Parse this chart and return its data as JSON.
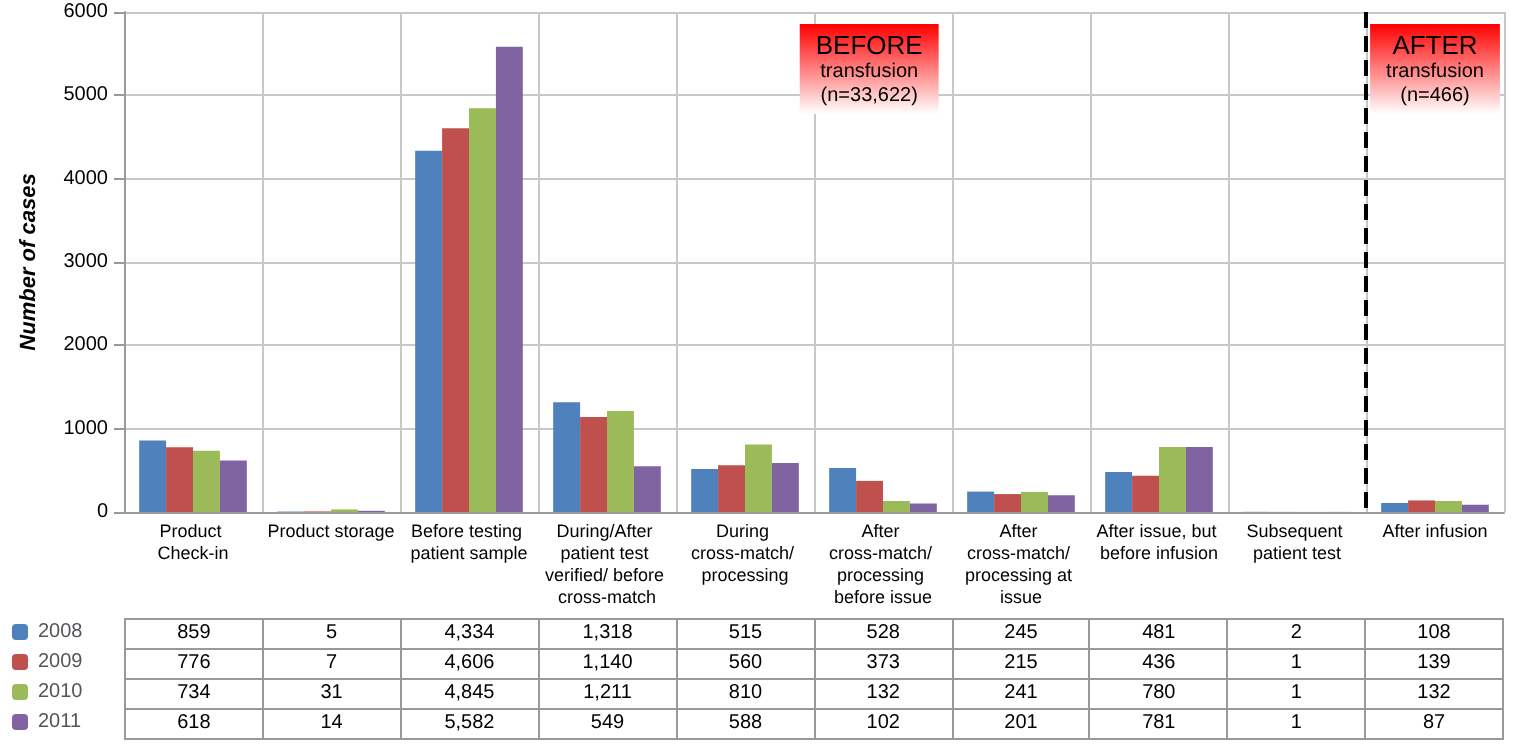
{
  "chart_data": {
    "type": "bar",
    "ylabel": "Number of cases",
    "categories": [
      "Product Check-in",
      "Product storage",
      "Before testing patient sample",
      "During/After patient test verified/ before cross-match",
      "During cross-match/ processing",
      "After cross-match/ processing before issue",
      "After cross-match/ processing at issue",
      "After issue, but before infusion",
      "Subsequent patient test",
      "After infusion"
    ],
    "series": [
      {
        "name": "2008",
        "color": "#4f81bd",
        "values": [
          859,
          5,
          4334,
          1318,
          515,
          528,
          245,
          481,
          2,
          108
        ],
        "value_labels": [
          "859",
          "5",
          "4,334",
          "1,318",
          "515",
          "528",
          "245",
          "481",
          "2",
          "108"
        ]
      },
      {
        "name": "2009",
        "color": "#c0504d",
        "values": [
          776,
          7,
          4606,
          1140,
          560,
          373,
          215,
          436,
          1,
          139
        ],
        "value_labels": [
          "776",
          "7",
          "4,606",
          "1,140",
          "560",
          "373",
          "215",
          "436",
          "1",
          "139"
        ]
      },
      {
        "name": "2010",
        "color": "#9bbb59",
        "values": [
          734,
          31,
          4845,
          1211,
          810,
          132,
          241,
          780,
          1,
          132
        ],
        "value_labels": [
          "734",
          "31",
          "4,845",
          "1,211",
          "810",
          "132",
          "241",
          "780",
          "1",
          "132"
        ]
      },
      {
        "name": "2011",
        "color": "#8064a2",
        "values": [
          618,
          14,
          5582,
          549,
          588,
          102,
          201,
          781,
          1,
          87
        ],
        "value_labels": [
          "618",
          "14",
          "5,582",
          "549",
          "588",
          "102",
          "201",
          "781",
          "1",
          "87"
        ]
      }
    ],
    "ylim": [
      0,
      6000
    ],
    "yticks": [
      0,
      1000,
      2000,
      3000,
      4000,
      5000,
      6000
    ],
    "grid": true,
    "legend": "bottom left",
    "annotations": [
      "BEFORE\ntransfusion\n(n=33,622)",
      "AFTER\ntransfusion\n(n=466)"
    ],
    "ref_lines": [
      {
        "axis": "x",
        "value": "After infusion",
        "line_style": "dashed",
        "color": "#000000"
      }
    ]
  }
}
